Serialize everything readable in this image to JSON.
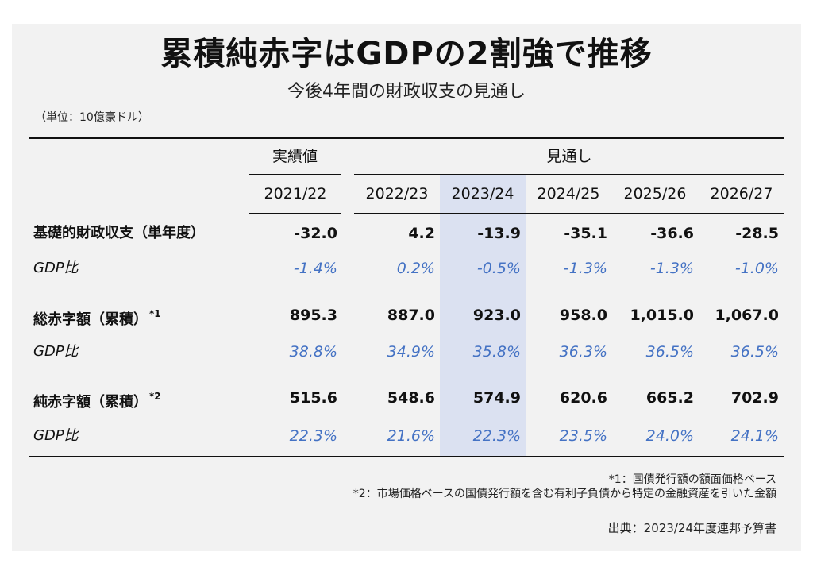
{
  "title": "累積純赤字はGDPの2割強で推移",
  "subtitle": "今後4年間の財政収支の見通し",
  "unit": "（単位：10億豪ドル）",
  "headers": {
    "actual": "実績値",
    "forecast": "見通し"
  },
  "accent_color": "#4472c4",
  "highlight_color": "#dbe1f1",
  "chart_data": {
    "type": "table",
    "columns": [
      "2021/22",
      "2022/23",
      "2023/24",
      "2024/25",
      "2025/26",
      "2026/27"
    ],
    "rows": [
      {
        "label": "基礎的財政収支（単年度）",
        "note": "",
        "values": [
          "-32.0",
          "4.2",
          "-13.9",
          "-35.1",
          "-36.6",
          "-28.5"
        ],
        "ratio_label": "GDP比",
        "ratios": [
          "-1.4%",
          "0.2%",
          "-0.5%",
          "-1.3%",
          "-1.3%",
          "-1.0%"
        ]
      },
      {
        "label": "総赤字額（累積）",
        "note": "*1",
        "values": [
          "895.3",
          "887.0",
          "923.0",
          "958.0",
          "1,015.0",
          "1,067.0"
        ],
        "ratio_label": "GDP比",
        "ratios": [
          "38.8%",
          "34.9%",
          "35.8%",
          "36.3%",
          "36.5%",
          "36.5%"
        ]
      },
      {
        "label": "純赤字額（累積）",
        "note": "*2",
        "values": [
          "515.6",
          "548.6",
          "574.9",
          "620.6",
          "665.2",
          "702.9"
        ],
        "ratio_label": "GDP比",
        "ratios": [
          "22.3%",
          "21.6%",
          "22.3%",
          "23.5%",
          "24.0%",
          "24.1%"
        ]
      }
    ],
    "highlighted_column": "2023/24"
  },
  "footnotes": [
    "*1：国債発行額の額面価格ベース",
    "*2：市場価格ベースの国債発行額を含む有利子負債から特定の金融資産を引いた金額"
  ],
  "source": "出典：2023/24年度連邦予算書"
}
